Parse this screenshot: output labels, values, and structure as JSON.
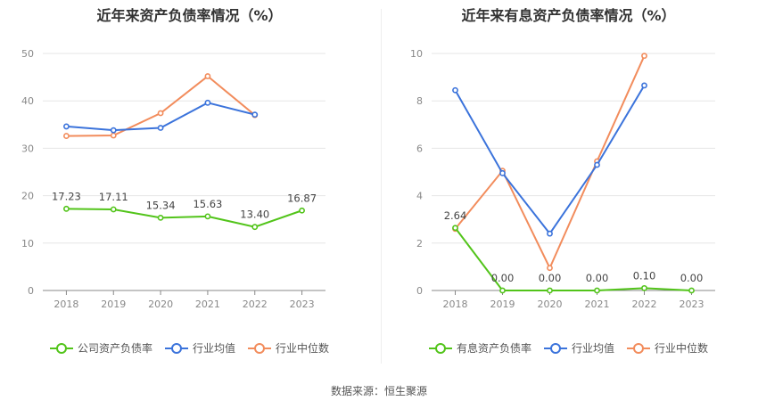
{
  "source_text": "数据来源：恒生聚源",
  "chart_data": [
    {
      "type": "line",
      "title": "近年来资产负债率情况（%）",
      "categories": [
        "2018",
        "2019",
        "2020",
        "2021",
        "2022",
        "2023"
      ],
      "ylim": [
        0,
        50
      ],
      "yticks": [
        "0",
        "10",
        "20",
        "30",
        "40",
        "50"
      ],
      "grid": true,
      "legend_position": "bottom",
      "series": [
        {
          "name": "公司资产负债率",
          "color": "#52c41a",
          "values": [
            17.23,
            17.11,
            15.34,
            15.63,
            13.4,
            16.87
          ],
          "labels": [
            "17.23",
            "17.11",
            "15.34",
            "15.63",
            "13.40",
            "16.87"
          ]
        },
        {
          "name": "行业均值",
          "color": "#3b73db",
          "values": [
            34.6,
            33.8,
            34.3,
            39.6,
            37.1,
            null
          ],
          "labels": []
        },
        {
          "name": "行业中位数",
          "color": "#f28c5c",
          "values": [
            32.6,
            32.7,
            37.4,
            45.2,
            37.0,
            null
          ],
          "labels": []
        }
      ]
    },
    {
      "type": "line",
      "title": "近年来有息资产负债率情况（%）",
      "categories": [
        "2018",
        "2019",
        "2020",
        "2021",
        "2022",
        "2023"
      ],
      "ylim": [
        0,
        10
      ],
      "yticks": [
        "0",
        "2",
        "4",
        "6",
        "8",
        "10"
      ],
      "grid": true,
      "legend_position": "bottom",
      "series": [
        {
          "name": "有息资产负债率",
          "color": "#52c41a",
          "values": [
            2.64,
            0.0,
            0.0,
            0.0,
            0.1,
            0.0
          ],
          "labels": [
            "2.64",
            "0.00",
            "0.00",
            "0.00",
            "0.10",
            "0.00"
          ]
        },
        {
          "name": "行业均值",
          "color": "#3b73db",
          "values": [
            8.45,
            4.95,
            2.4,
            5.3,
            8.65,
            null
          ],
          "labels": []
        },
        {
          "name": "行业中位数",
          "color": "#f28c5c",
          "values": [
            2.6,
            5.05,
            0.95,
            5.45,
            9.9,
            null
          ],
          "labels": []
        }
      ]
    }
  ]
}
